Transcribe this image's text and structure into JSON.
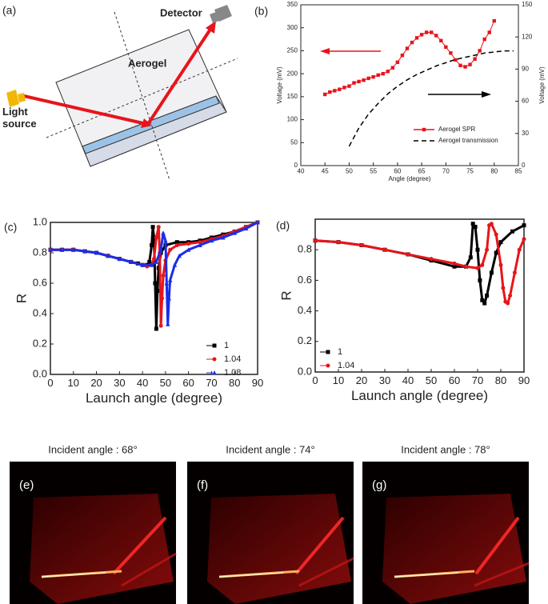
{
  "diagram": {
    "label": "(a)",
    "detector": "Detector",
    "sample": "Aerogel",
    "source": "Light source"
  },
  "chart_data": [
    {
      "type": "line",
      "panel_label": "(b)",
      "xlabel": "Angle (degree)",
      "ylabel": "Voltage (mV)",
      "y2label": "Voltage (mV)",
      "xlim": [
        40,
        85
      ],
      "xticks": [
        40,
        45,
        50,
        55,
        60,
        65,
        70,
        75,
        80,
        85
      ],
      "ylim": [
        0,
        350
      ],
      "yticks": [
        0,
        50,
        100,
        150,
        200,
        250,
        300,
        350
      ],
      "y2lim": [
        0,
        150
      ],
      "y2ticks": [
        0,
        30,
        60,
        90,
        120,
        150
      ],
      "legend": "lower right",
      "series": [
        {
          "name": "Aerogel SPR",
          "color": "#e8141b",
          "marker": "square",
          "line_style": "solid",
          "x": [
            45,
            46,
            47,
            48,
            49,
            50,
            51,
            52,
            53,
            54,
            55,
            56,
            57,
            58,
            59,
            60,
            61,
            62,
            63,
            64,
            65,
            66,
            67,
            68,
            69,
            70,
            71,
            72,
            73,
            74,
            75,
            76,
            77,
            78,
            79,
            80
          ],
          "values": [
            155,
            160,
            163,
            166,
            170,
            173,
            180,
            183,
            186,
            190,
            193,
            197,
            200,
            205,
            213,
            225,
            240,
            255,
            268,
            278,
            285,
            290,
            290,
            283,
            272,
            258,
            245,
            230,
            218,
            215,
            220,
            232,
            250,
            275,
            290,
            315
          ]
        },
        {
          "name": "Aerogel transmission",
          "color": "#000000",
          "marker": "none",
          "line_style": "dashed",
          "axis": "y2",
          "x": [
            50,
            52,
            54,
            56,
            58,
            60,
            62,
            64,
            66,
            68,
            70,
            72,
            74,
            76,
            78,
            80,
            82,
            84
          ],
          "values": [
            18,
            35,
            48,
            58,
            67,
            74,
            80,
            85,
            89,
            93,
            96,
            99,
            101,
            103,
            105,
            106,
            107,
            107
          ]
        }
      ]
    },
    {
      "type": "line",
      "panel_label": "(c)",
      "xlabel": "Launch angle (degree)",
      "ylabel": "R",
      "xlim": [
        0,
        90
      ],
      "xticks": [
        0,
        10,
        20,
        30,
        40,
        50,
        60,
        70,
        80,
        90
      ],
      "ylim": [
        0,
        1
      ],
      "yticks": [
        {
          "value": 0,
          "label": "0.0"
        },
        0.2,
        0.4,
        0.6,
        0.8,
        {
          "value": 1,
          "label": "1.0"
        }
      ],
      "legend": "lower right",
      "series": [
        {
          "name": "1",
          "color": "#000000",
          "marker": "square",
          "line_style": "solid",
          "x": [
            0,
            5,
            10,
            15,
            20,
            25,
            30,
            35,
            38,
            40,
            42,
            43,
            44,
            44.5,
            45,
            45.5,
            46,
            46.5,
            47,
            48,
            50,
            55,
            60,
            65,
            70,
            75,
            80,
            85,
            90
          ],
          "values": [
            0.82,
            0.82,
            0.82,
            0.81,
            0.8,
            0.78,
            0.76,
            0.74,
            0.73,
            0.72,
            0.72,
            0.74,
            0.85,
            0.97,
            0.9,
            0.6,
            0.3,
            0.55,
            0.7,
            0.8,
            0.85,
            0.87,
            0.87,
            0.88,
            0.9,
            0.92,
            0.94,
            0.97,
            1.0
          ]
        },
        {
          "name": "1.04",
          "color": "#e8141b",
          "marker": "circle",
          "line_style": "solid",
          "x": [
            0,
            5,
            10,
            15,
            20,
            25,
            30,
            35,
            40,
            42,
            44,
            45,
            46,
            47,
            47.5,
            48,
            48.5,
            49,
            50,
            52,
            55,
            60,
            65,
            70,
            75,
            80,
            85,
            90
          ],
          "values": [
            0.82,
            0.82,
            0.82,
            0.81,
            0.8,
            0.78,
            0.76,
            0.74,
            0.72,
            0.71,
            0.72,
            0.76,
            0.9,
            0.97,
            0.8,
            0.32,
            0.5,
            0.65,
            0.75,
            0.82,
            0.85,
            0.86,
            0.87,
            0.89,
            0.91,
            0.94,
            0.97,
            1.0
          ]
        },
        {
          "name": "1.08",
          "color": "#1a2ee8",
          "marker": "triangle",
          "line_style": "solid",
          "x": [
            0,
            5,
            10,
            15,
            20,
            25,
            30,
            35,
            40,
            44,
            46,
            48,
            49,
            50,
            50.5,
            51,
            51.5,
            52,
            54,
            56,
            60,
            65,
            70,
            75,
            80,
            85,
            90
          ],
          "values": [
            0.82,
            0.82,
            0.82,
            0.81,
            0.8,
            0.78,
            0.76,
            0.74,
            0.72,
            0.72,
            0.74,
            0.82,
            0.93,
            0.88,
            0.6,
            0.33,
            0.5,
            0.62,
            0.72,
            0.78,
            0.82,
            0.85,
            0.88,
            0.9,
            0.93,
            0.96,
            1.0
          ]
        }
      ]
    },
    {
      "type": "line",
      "panel_label": "(d)",
      "xlabel": "Launch angle (degree)",
      "ylabel": "R",
      "xlim": [
        0,
        90
      ],
      "xticks": [
        0,
        10,
        20,
        30,
        40,
        50,
        60,
        70,
        80,
        90
      ],
      "ylim": [
        0,
        1
      ],
      "yticks": [
        {
          "value": 0,
          "label": "0.0"
        },
        0.2,
        0.4,
        0.6,
        0.8
      ],
      "legend": "lower left",
      "series": [
        {
          "name": "1",
          "color": "#000000",
          "marker": "square",
          "line_style": "solid",
          "x": [
            0,
            10,
            20,
            30,
            40,
            50,
            60,
            65,
            67,
            68,
            69,
            70,
            71,
            72,
            73,
            74,
            76,
            78,
            80,
            85,
            90
          ],
          "values": [
            0.86,
            0.85,
            0.83,
            0.8,
            0.77,
            0.73,
            0.69,
            0.69,
            0.75,
            0.97,
            0.95,
            0.8,
            0.6,
            0.47,
            0.45,
            0.5,
            0.65,
            0.78,
            0.85,
            0.92,
            0.96
          ]
        },
        {
          "name": "1.04",
          "color": "#e8141b",
          "marker": "circle",
          "line_style": "solid",
          "x": [
            0,
            10,
            20,
            30,
            40,
            50,
            60,
            65,
            70,
            72,
            74,
            75,
            76,
            78,
            80,
            81,
            82,
            83,
            84,
            86,
            88,
            90
          ],
          "values": [
            0.86,
            0.85,
            0.83,
            0.8,
            0.77,
            0.74,
            0.71,
            0.69,
            0.68,
            0.7,
            0.8,
            0.96,
            0.97,
            0.9,
            0.7,
            0.55,
            0.46,
            0.45,
            0.5,
            0.65,
            0.8,
            0.87
          ]
        }
      ]
    }
  ],
  "photos": [
    {
      "label": "(e)",
      "caption": "Incident angle : 68°"
    },
    {
      "label": "(f)",
      "caption": "Incident angle : 74°"
    },
    {
      "label": "(g)",
      "caption": "Incident angle : 78°"
    }
  ]
}
